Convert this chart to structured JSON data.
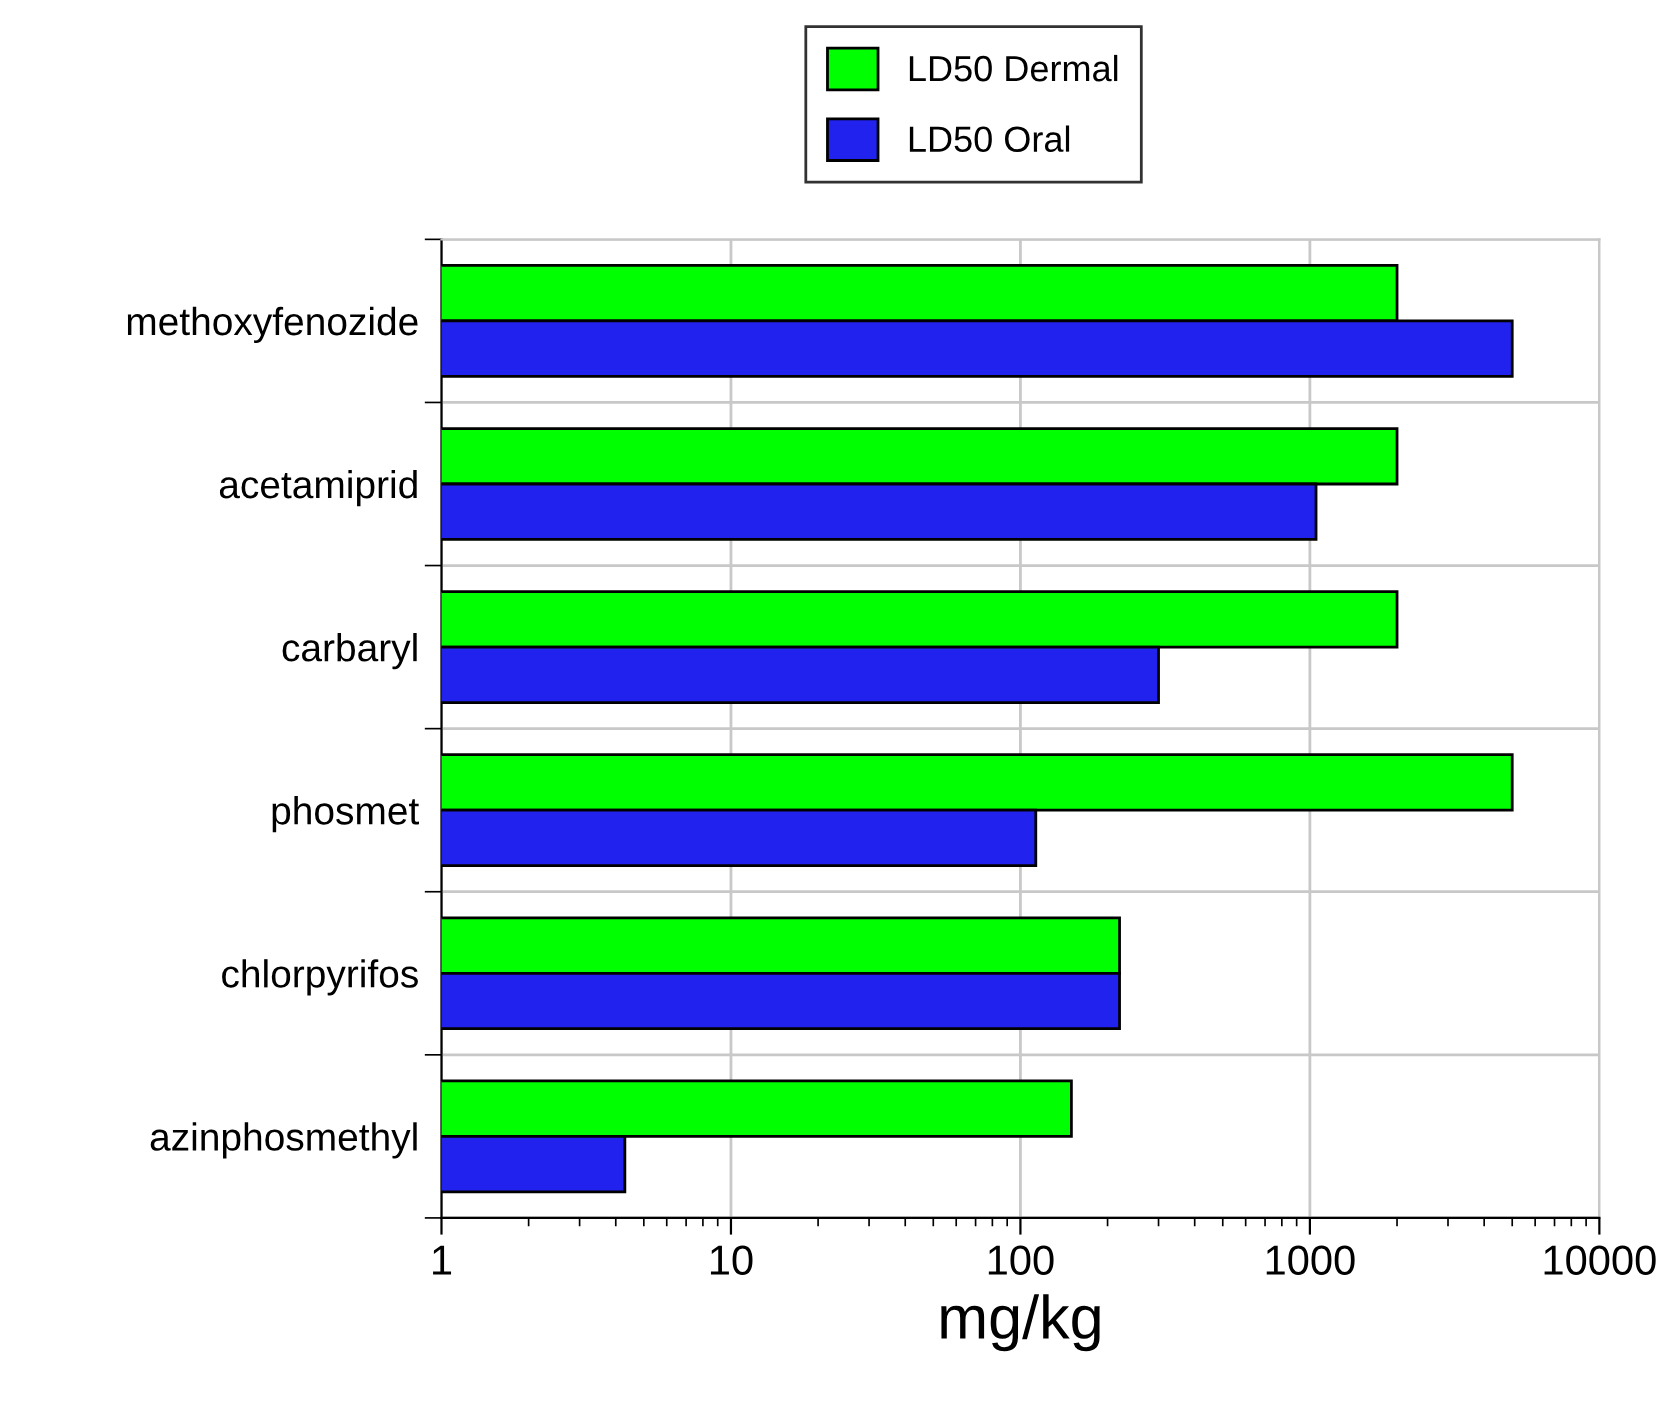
{
  "chart_data": {
    "type": "bar",
    "orientation": "horizontal",
    "xlabel": "mg/kg",
    "categories": [
      "methoxyfenozide",
      "acetamiprid",
      "carbaryl",
      "phosmet",
      "chlorpyrifos",
      "azinphosmethyl"
    ],
    "series": [
      {
        "name": "LD50 Dermal",
        "color": "#00ff00",
        "values": [
          2000,
          2000,
          2000,
          5000,
          220,
          150
        ]
      },
      {
        "name": "LD50 Oral",
        "color": "#2222ee",
        "values": [
          5000,
          1050,
          300,
          113,
          220,
          4.3
        ]
      }
    ],
    "log": "x",
    "xlim": [
      1,
      10000
    ],
    "xticks": [
      1,
      10,
      100,
      1000,
      10000
    ],
    "grid": true,
    "legend": "top right"
  }
}
